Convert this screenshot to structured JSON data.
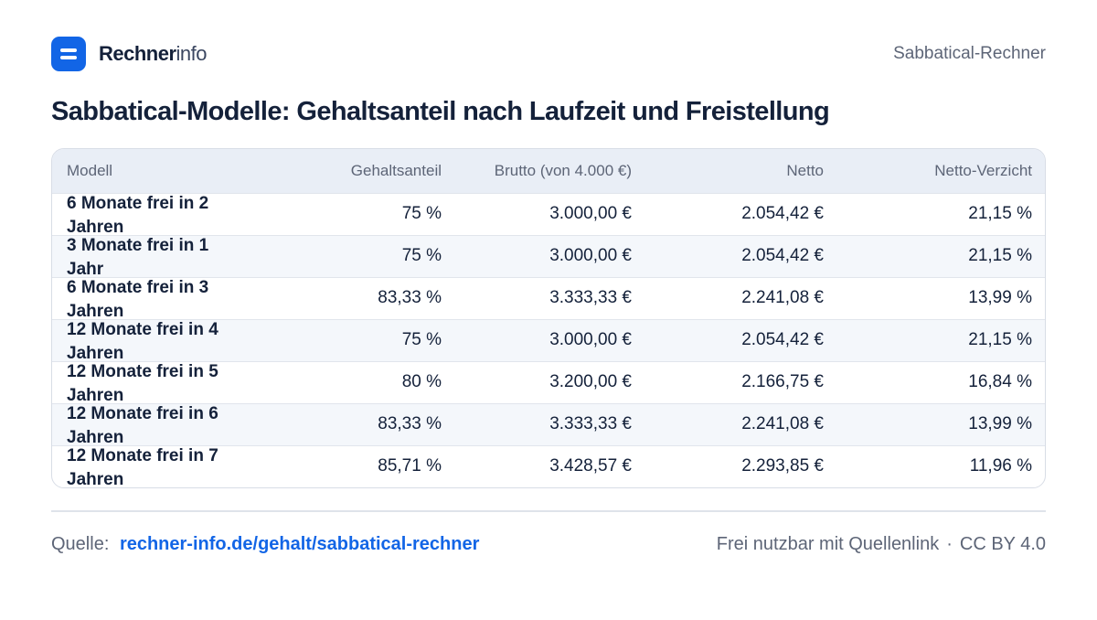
{
  "brand": {
    "name_strong": "Rechner",
    "name_light": "info"
  },
  "header": {
    "page_label": "Sabbatical-Rechner"
  },
  "title": "Sabbatical-Modelle: Gehaltsanteil nach Laufzeit und Freistellung",
  "table": {
    "columns": [
      "Modell",
      "Gehaltsanteil",
      "Brutto (von 4.000 €)",
      "Netto",
      "Netto-Verzicht"
    ],
    "rows": [
      {
        "model": "6 Monate frei in 2 Jahren",
        "share": "75 %",
        "gross": "3.000,00 €",
        "net": "2.054,42 €",
        "loss": "21,15 %"
      },
      {
        "model": "3 Monate frei in 1 Jahr",
        "share": "75 %",
        "gross": "3.000,00 €",
        "net": "2.054,42 €",
        "loss": "21,15 %"
      },
      {
        "model": "6 Monate frei in 3 Jahren",
        "share": "83,33 %",
        "gross": "3.333,33 €",
        "net": "2.241,08 €",
        "loss": "13,99 %"
      },
      {
        "model": "12 Monate frei in 4 Jahren",
        "share": "75 %",
        "gross": "3.000,00 €",
        "net": "2.054,42 €",
        "loss": "21,15 %"
      },
      {
        "model": "12 Monate frei in 5 Jahren",
        "share": "80 %",
        "gross": "3.200,00 €",
        "net": "2.166,75 €",
        "loss": "16,84 %"
      },
      {
        "model": "12 Monate frei in 6 Jahren",
        "share": "83,33 %",
        "gross": "3.333,33 €",
        "net": "2.241,08 €",
        "loss": "13,99 %"
      },
      {
        "model": "12 Monate frei in 7 Jahren",
        "share": "85,71 %",
        "gross": "3.428,57 €",
        "net": "2.293,85 €",
        "loss": "11,96 %"
      }
    ]
  },
  "footer": {
    "source_label": "Quelle:",
    "source_link": "rechner-info.de/gehalt/sabbatical-rechner",
    "license_text": "Frei nutzbar mit Quellenlink",
    "separator": "·",
    "license": "CC BY 4.0"
  },
  "colors": {
    "accent": "#1265e6",
    "text": "#14213a",
    "muted": "#5d6577",
    "header_bg": "#e9eef6",
    "row_alt": "#f4f7fb"
  }
}
